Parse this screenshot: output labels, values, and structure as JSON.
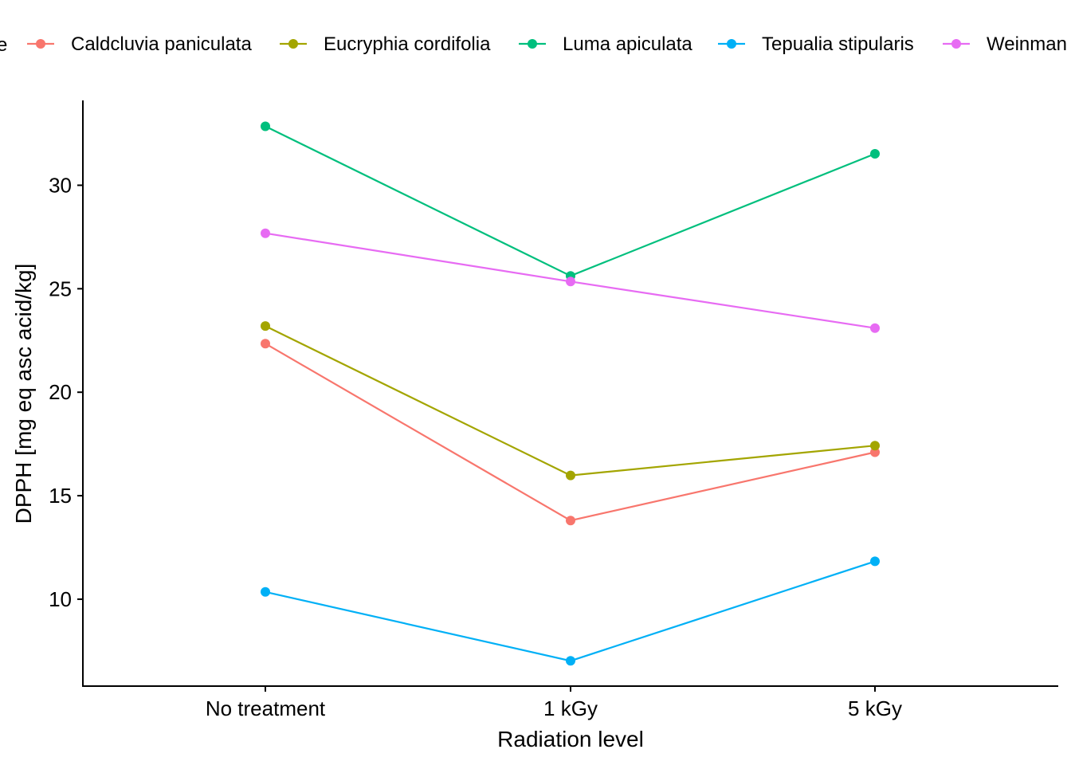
{
  "chart_data": {
    "type": "line",
    "title": "",
    "xlabel": "Radiation level",
    "ylabel": "DPPH [mg eq asc acid/kg]",
    "categories": [
      "No treatment",
      "1 kGy",
      "5 kGy"
    ],
    "ylim": [
      5.8,
      34.1
    ],
    "yticks": [
      10,
      15,
      20,
      25,
      30
    ],
    "grid": false,
    "legend_position": "top",
    "legend_title_fragment": "e",
    "series": [
      {
        "name": "Caldcluvia paniculata",
        "color": "#F8766D",
        "values": [
          22.35,
          13.8,
          17.1
        ]
      },
      {
        "name": "Eucryphia cordifolia",
        "color": "#A3A500",
        "values": [
          23.2,
          15.98,
          17.42
        ]
      },
      {
        "name": "Luma apiculata",
        "color": "#00BF7D",
        "values": [
          32.85,
          25.62,
          31.52
        ]
      },
      {
        "name": "Tepualia stipularis",
        "color": "#00B0F6",
        "values": [
          10.35,
          7.02,
          11.83
        ]
      },
      {
        "name": "Weinman",
        "color": "#E76BF3",
        "values": [
          27.68,
          25.35,
          23.1
        ]
      }
    ]
  }
}
